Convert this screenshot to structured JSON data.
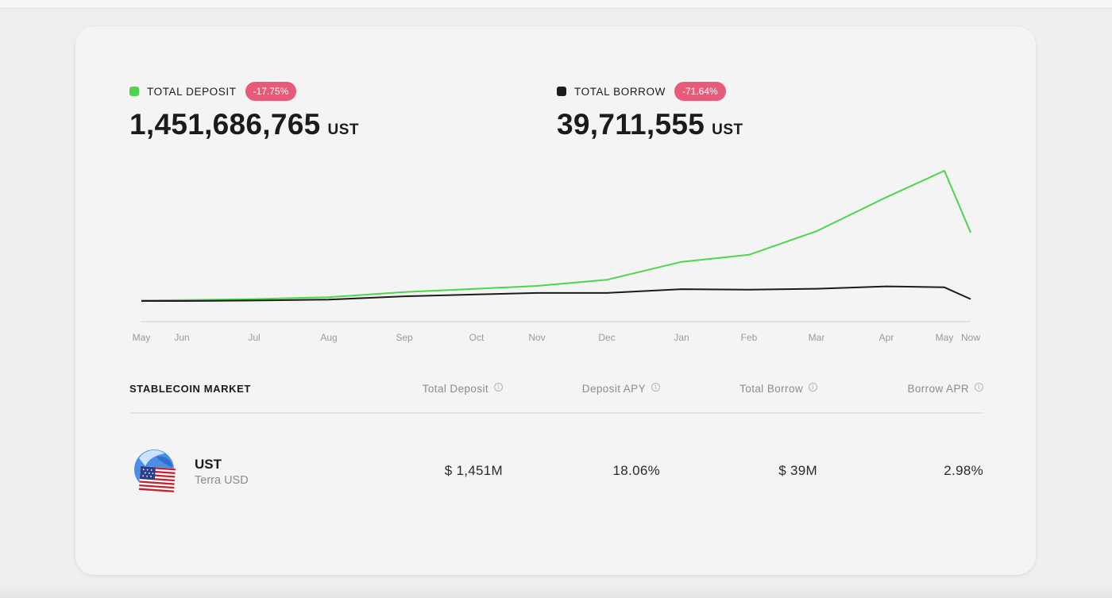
{
  "summary": {
    "deposit": {
      "label": "TOTAL DEPOSIT",
      "change": "-17.75%",
      "value": "1,451,686,765",
      "unit": "UST",
      "color": "#4ed44e"
    },
    "borrow": {
      "label": "TOTAL BORROW",
      "change": "-71.64%",
      "value": "39,711,555",
      "unit": "UST",
      "color": "#1b1b1b"
    },
    "badge_color": "#e95979"
  },
  "chart_data": {
    "type": "line",
    "x": [
      "May",
      "Jun",
      "Jul",
      "Aug",
      "Sep",
      "Oct",
      "Nov",
      "Dec",
      "Jan",
      "Feb",
      "Mar",
      "Apr",
      "May",
      "Now"
    ],
    "xlabel": "",
    "ylabel": "",
    "grid": false,
    "series": [
      {
        "name": "TOTAL DEPOSIT",
        "color": "#4ed44e",
        "values": [
          0.01,
          0.02,
          0.04,
          0.08,
          0.19,
          0.26,
          0.32,
          0.45,
          0.83,
          0.98,
          1.48,
          2.2,
          2.76,
          1.45
        ]
      },
      {
        "name": "TOTAL BORROW",
        "color": "#1b1b1b",
        "values": [
          0.0,
          0.0,
          0.01,
          0.03,
          0.1,
          0.14,
          0.17,
          0.17,
          0.25,
          0.24,
          0.26,
          0.31,
          0.29,
          0.04
        ]
      }
    ]
  },
  "market": {
    "title": "STABLECOIN MARKET",
    "columns": [
      "Total Deposit",
      "Deposit APY",
      "Total Borrow",
      "Borrow APR"
    ],
    "rows": [
      {
        "icon": "ust-flag-globe-icon",
        "symbol": "UST",
        "name": "Terra USD",
        "total_deposit": "$ 1,451M",
        "deposit_apy": "18.06%",
        "total_borrow": "$ 39M",
        "borrow_apr": "2.98%"
      }
    ]
  }
}
